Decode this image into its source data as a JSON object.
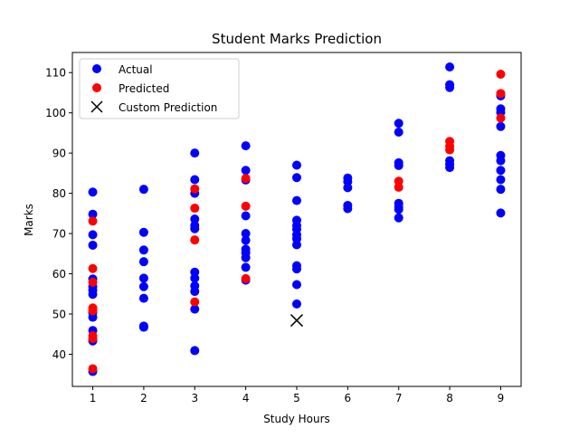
{
  "chart_data": {
    "type": "scatter",
    "title": "Student Marks Prediction",
    "xlabel": "Study Hours",
    "ylabel": "Marks",
    "xlim": [
      0.6,
      9.4
    ],
    "ylim": [
      32,
      115
    ],
    "xticks": [
      1,
      2,
      3,
      4,
      5,
      6,
      7,
      8,
      9
    ],
    "yticks": [
      40,
      50,
      60,
      70,
      80,
      90,
      100,
      110
    ],
    "grid": false,
    "legend_position": "upper-left",
    "series": [
      {
        "name": "Actual",
        "color": "#0000ff",
        "marker": "circle",
        "points": [
          [
            1,
            80.3
          ],
          [
            1,
            74.8
          ],
          [
            1,
            69.7
          ],
          [
            1,
            67.1
          ],
          [
            1,
            58.7
          ],
          [
            1,
            56.8
          ],
          [
            1,
            55.9
          ],
          [
            1,
            54.9
          ],
          [
            1,
            50.3
          ],
          [
            1,
            49.2
          ],
          [
            1,
            45.9
          ],
          [
            1,
            43.3
          ],
          [
            1,
            35.7
          ],
          [
            2,
            81.0
          ],
          [
            2,
            70.3
          ],
          [
            2,
            65.9
          ],
          [
            2,
            63.0
          ],
          [
            2,
            58.9
          ],
          [
            2,
            56.8
          ],
          [
            2,
            53.9
          ],
          [
            2,
            47.0
          ],
          [
            2,
            46.7
          ],
          [
            3,
            90.0
          ],
          [
            3,
            83.4
          ],
          [
            3,
            80.0
          ],
          [
            3,
            73.6
          ],
          [
            3,
            72.0
          ],
          [
            3,
            71.2
          ],
          [
            3,
            60.4
          ],
          [
            3,
            58.9
          ],
          [
            3,
            57.0
          ],
          [
            3,
            55.6
          ],
          [
            3,
            51.2
          ],
          [
            3,
            40.9
          ],
          [
            4,
            91.8
          ],
          [
            4,
            85.7
          ],
          [
            4,
            83.3
          ],
          [
            4,
            74.4
          ],
          [
            4,
            70.0
          ],
          [
            4,
            68.3
          ],
          [
            4,
            66.1
          ],
          [
            4,
            65.2
          ],
          [
            4,
            64.0
          ],
          [
            4,
            61.6
          ],
          [
            4,
            58.4
          ],
          [
            5,
            87.0
          ],
          [
            5,
            83.9
          ],
          [
            5,
            78.2
          ],
          [
            5,
            73.3
          ],
          [
            5,
            72.0
          ],
          [
            5,
            71.1
          ],
          [
            5,
            69.7
          ],
          [
            5,
            68.7
          ],
          [
            5,
            67.2
          ],
          [
            5,
            62.0
          ],
          [
            5,
            61.2
          ],
          [
            5,
            57.3
          ],
          [
            5,
            52.5
          ],
          [
            6,
            83.8
          ],
          [
            6,
            82.9
          ],
          [
            6,
            81.4
          ],
          [
            6,
            77.0
          ],
          [
            6,
            76.2
          ],
          [
            7,
            97.4
          ],
          [
            7,
            95.2
          ],
          [
            7,
            87.6
          ],
          [
            7,
            86.9
          ],
          [
            7,
            77.5
          ],
          [
            7,
            76.6
          ],
          [
            7,
            76.0
          ],
          [
            7,
            73.9
          ],
          [
            8,
            111.4
          ],
          [
            8,
            107.0
          ],
          [
            8,
            106.3
          ],
          [
            8,
            88.1
          ],
          [
            8,
            87.2
          ],
          [
            8,
            86.4
          ],
          [
            9,
            104.2
          ],
          [
            9,
            101.0
          ],
          [
            9,
            100.1
          ],
          [
            9,
            96.6
          ],
          [
            9,
            89.4
          ],
          [
            9,
            88.1
          ],
          [
            9,
            85.7
          ],
          [
            9,
            83.4
          ],
          [
            9,
            81.0
          ],
          [
            9,
            75.1
          ]
        ]
      },
      {
        "name": "Predicted",
        "color": "#ff0000",
        "marker": "circle",
        "points": [
          [
            1,
            73.1
          ],
          [
            1,
            61.3
          ],
          [
            1,
            57.9
          ],
          [
            1,
            51.5
          ],
          [
            1,
            50.8
          ],
          [
            1,
            44.6
          ],
          [
            1,
            43.9
          ],
          [
            1,
            36.4
          ],
          [
            3,
            81.1
          ],
          [
            3,
            76.3
          ],
          [
            3,
            68.4
          ],
          [
            3,
            53.0
          ],
          [
            4,
            83.7
          ],
          [
            4,
            76.8
          ],
          [
            4,
            58.8
          ],
          [
            7,
            83.0
          ],
          [
            7,
            81.5
          ],
          [
            8,
            92.9
          ],
          [
            8,
            91.7
          ],
          [
            8,
            90.8
          ],
          [
            9,
            109.6
          ],
          [
            9,
            104.8
          ],
          [
            9,
            98.7
          ]
        ]
      },
      {
        "name": "Custom Prediction",
        "color": "#000000",
        "marker": "x",
        "points": [
          [
            5,
            48.4
          ]
        ]
      }
    ]
  }
}
